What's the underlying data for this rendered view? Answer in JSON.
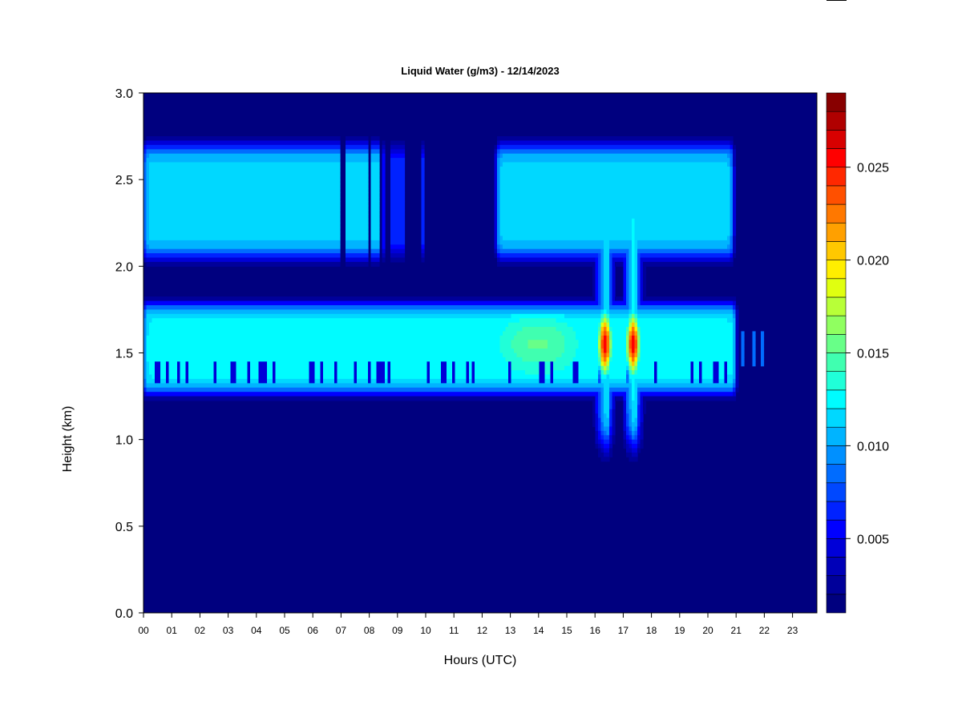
{
  "chart_data": {
    "type": "heatmap",
    "title": "Liquid Water (g/m3) - 12/14/2023",
    "xlabel": "Hours (UTC)",
    "ylabel": "Height (km)",
    "xlim": [
      0,
      24
    ],
    "ylim": [
      0.0,
      3.0
    ],
    "x_ticks": [
      "00",
      "01",
      "02",
      "03",
      "04",
      "05",
      "06",
      "07",
      "08",
      "09",
      "10",
      "11",
      "12",
      "13",
      "14",
      "15",
      "16",
      "17",
      "18",
      "19",
      "20",
      "21",
      "22",
      "23"
    ],
    "y_ticks": [
      "0.0",
      "0.5",
      "1.0",
      "1.5",
      "2.0",
      "2.5",
      "3.0"
    ],
    "colorbar": {
      "range": [
        0.001,
        0.029
      ],
      "ticks": [
        {
          "value": 0.005,
          "label": "0.005"
        },
        {
          "value": 0.01,
          "label": "0.010"
        },
        {
          "value": 0.015,
          "label": "0.015"
        },
        {
          "value": 0.02,
          "label": "0.020"
        },
        {
          "value": 0.025,
          "label": "0.025"
        }
      ],
      "colors": [
        "#00007f",
        "#00009a",
        "#0000b8",
        "#0000d8",
        "#0000ff",
        "#0022ff",
        "#0048ff",
        "#006cff",
        "#0090ff",
        "#00b4ff",
        "#00d8ff",
        "#00fcff",
        "#20ffd8",
        "#40ffb0",
        "#68ff88",
        "#90ff60",
        "#b8ff38",
        "#e0ff10",
        "#ffee00",
        "#ffc800",
        "#ffa000",
        "#ff7800",
        "#ff5000",
        "#ff2800",
        "#ff0000",
        "#d80000",
        "#b00000",
        "#880000"
      ]
    },
    "layers": [
      {
        "name": "upper cloud layer",
        "height_km": [
          2.05,
          2.7
        ],
        "peak_km": 2.4,
        "hours": [
          [
            0.0,
            8.5
          ],
          [
            12.5,
            20.9
          ]
        ],
        "typical_gm3": 0.011
      },
      {
        "name": "lower cloud layer",
        "height_km": [
          1.25,
          1.85
        ],
        "peak_km": 1.55,
        "hours": [
          [
            0.0,
            21.0
          ]
        ],
        "typical_gm3": 0.012
      },
      {
        "name": "maximum",
        "hours": [
          [
            16.0,
            17.6
          ]
        ],
        "height_km": [
          1.0,
          2.5
        ],
        "peak_km": 1.55,
        "max_gm3": 0.027
      }
    ]
  }
}
